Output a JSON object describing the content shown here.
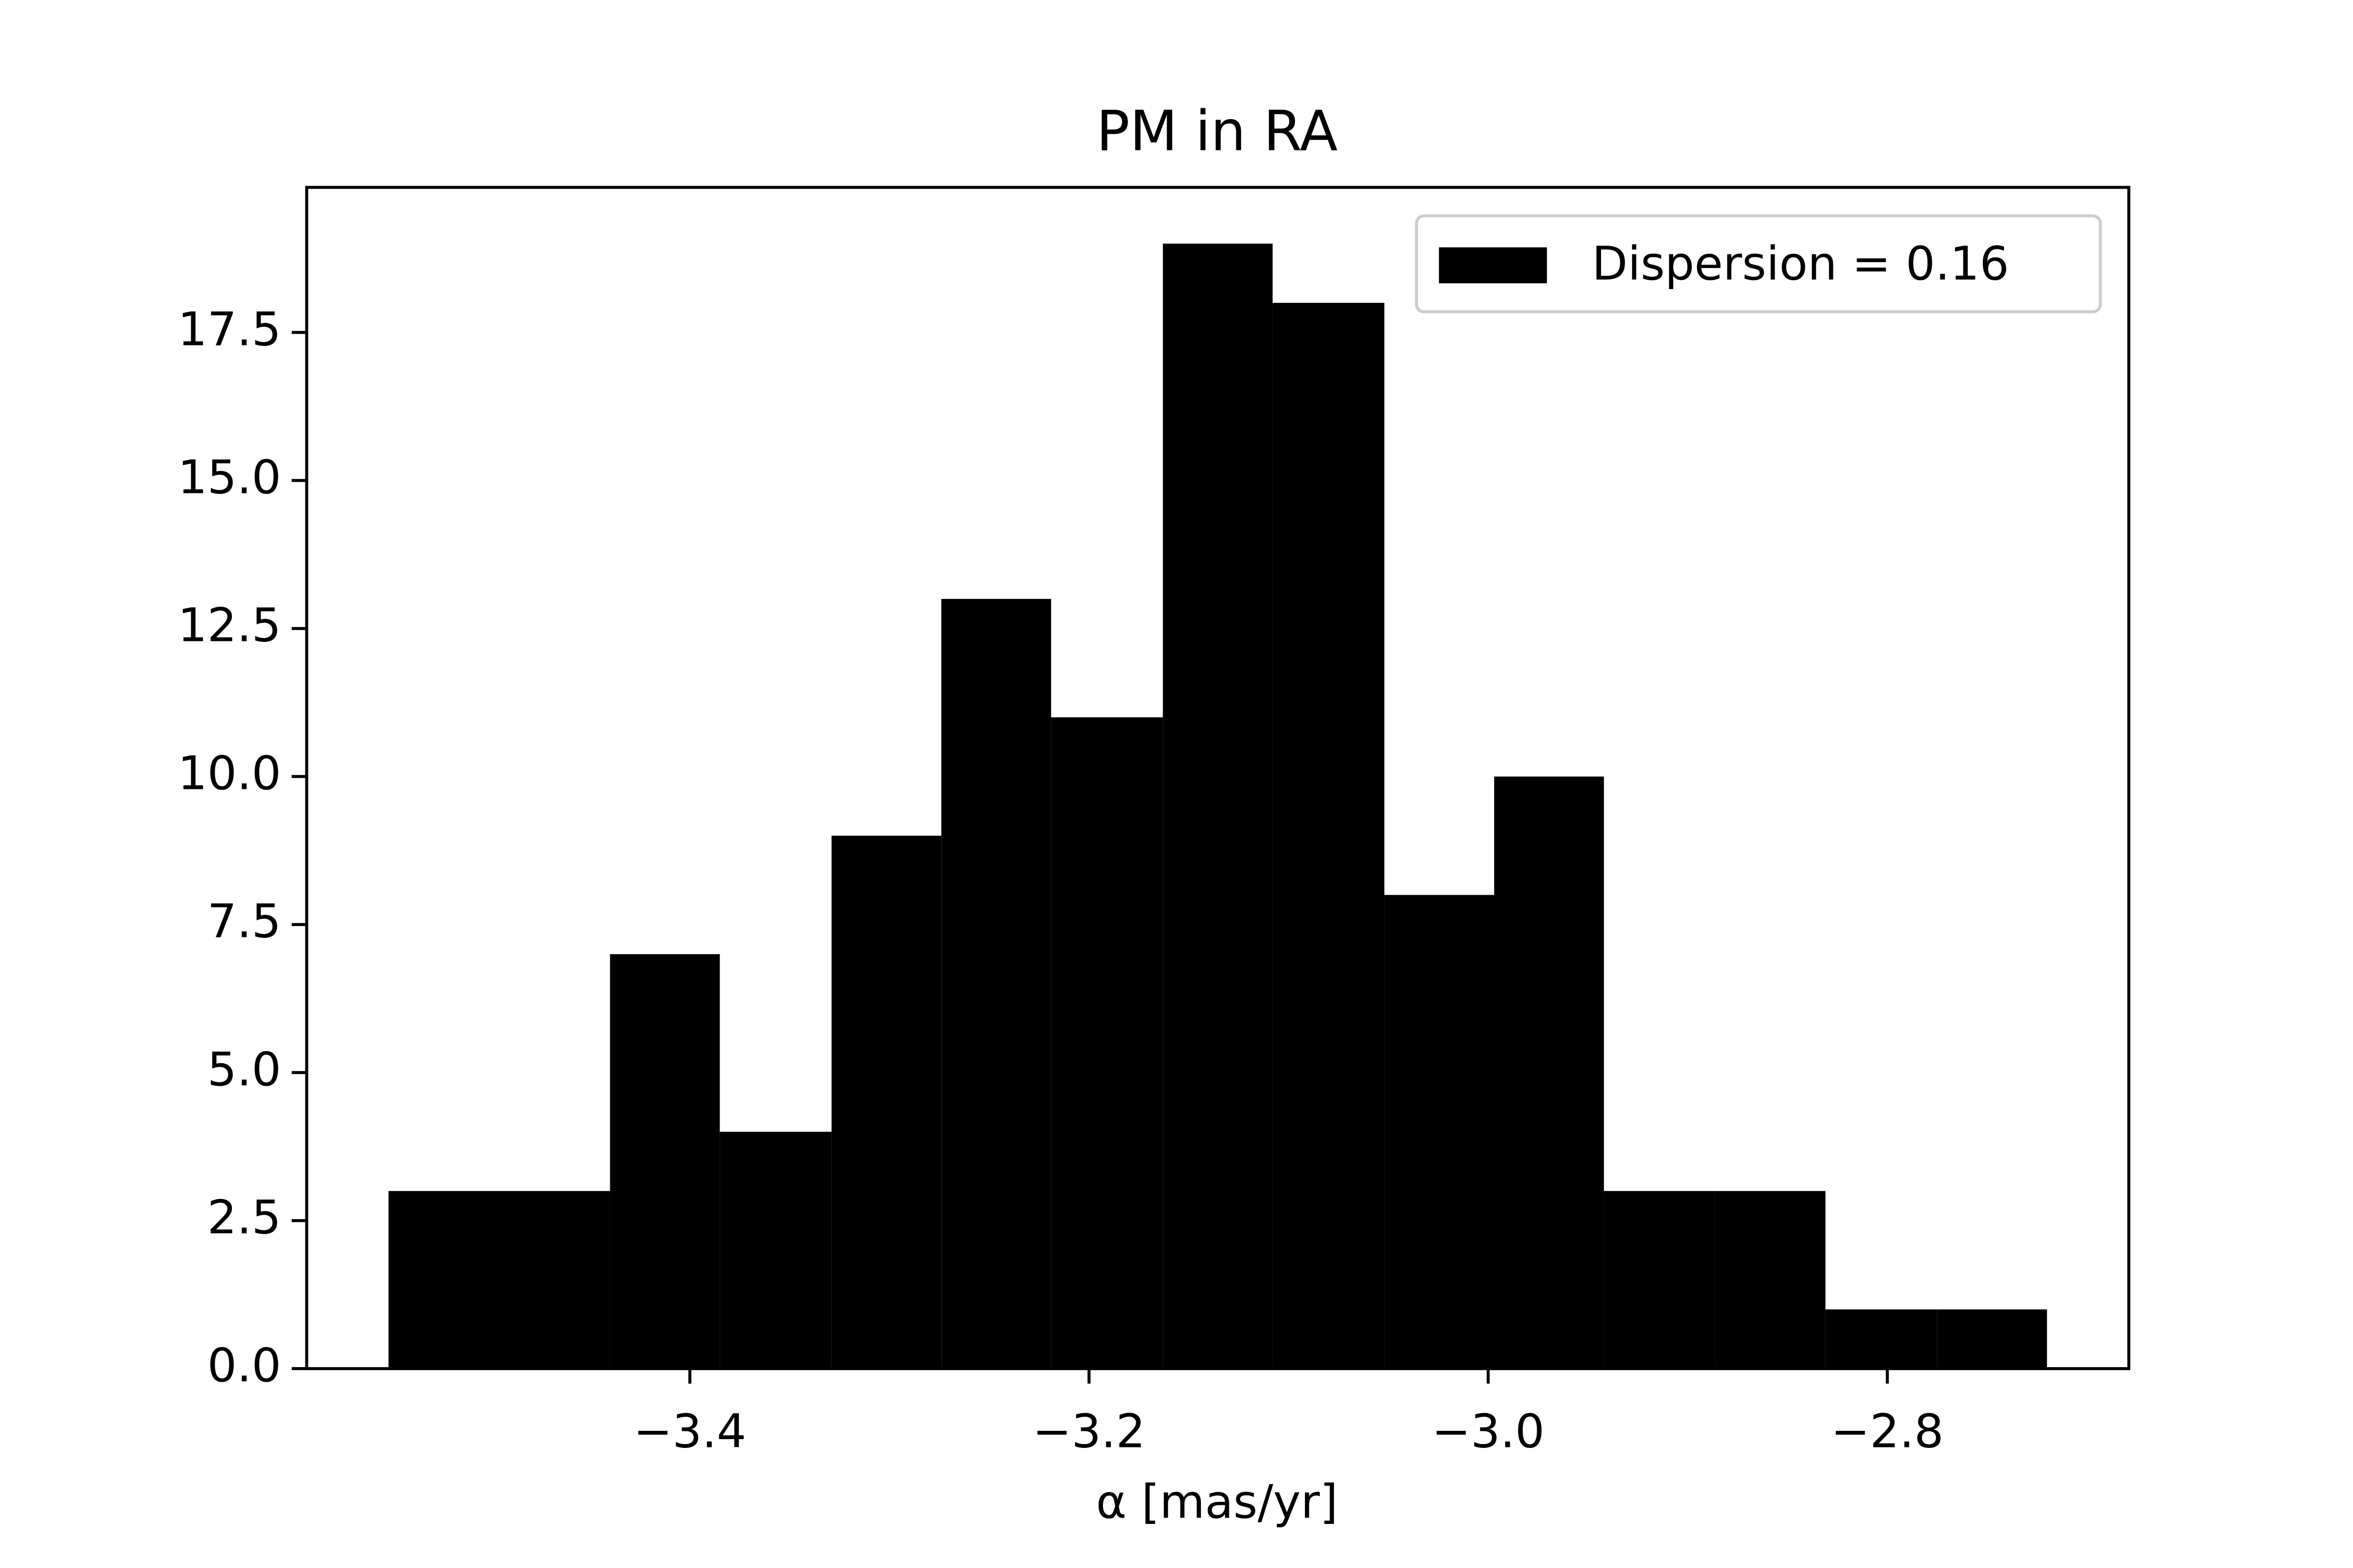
{
  "chart_data": {
    "type": "histogram",
    "title": "PM in RA",
    "xlabel": "α [mas/yr]",
    "bins": [
      -3.551,
      -3.496,
      -3.44,
      -3.385,
      -3.329,
      -3.274,
      -3.219,
      -3.163,
      -3.108,
      -3.052,
      -2.997,
      -2.942,
      -2.886,
      -2.831,
      -2.775,
      -2.72
    ],
    "series": [
      {
        "name": "Dispersion = 0.16",
        "color": "#000000",
        "values": [
          3,
          3,
          7,
          4,
          9,
          13,
          11,
          19,
          18,
          8,
          10,
          3,
          3,
          1,
          1
        ]
      }
    ],
    "xlim": [
      -3.592,
      -2.679
    ],
    "xticks": [
      {
        "value": -3.4,
        "label": "−3.4"
      },
      {
        "value": -3.2,
        "label": "−3.2"
      },
      {
        "value": -3.0,
        "label": "−3.0"
      },
      {
        "value": -2.8,
        "label": "−2.8"
      }
    ],
    "ylim": [
      0,
      19.95
    ],
    "yticks": [
      {
        "value": 0,
        "label": "0.0"
      },
      2.5,
      {
        "value": 5,
        "label": "5.0"
      },
      7.5,
      {
        "value": 10,
        "label": "10.0"
      },
      12.5,
      {
        "value": 15,
        "label": "15.0"
      },
      17.5
    ],
    "legend": "upper right",
    "grid": false
  }
}
